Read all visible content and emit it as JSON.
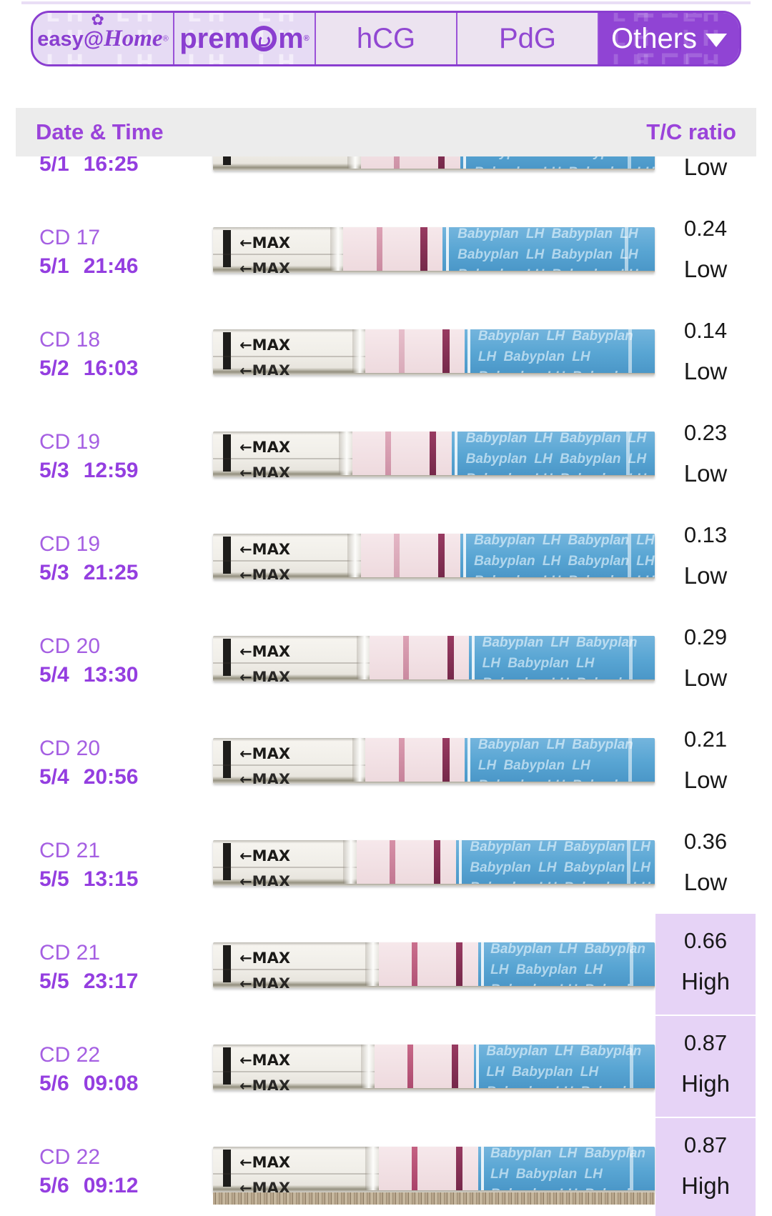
{
  "tab_bar": {
    "watermark": "LH",
    "brand1": {
      "pre": "easy",
      "at": "@",
      "post": "Home",
      "reg": "®",
      "flower": "✿"
    },
    "brand2": {
      "pre": "prem",
      "post": "m",
      "reg": "®"
    },
    "tab_hcg": "hCG",
    "tab_pdg": "PdG",
    "tab_others": "Others"
  },
  "table_header": {
    "col_date": "Date & Time",
    "col_ratio": "T/C ratio"
  },
  "strip": {
    "max_label": "←MAX",
    "brand": "Babyplan LH"
  },
  "colors": {
    "accent_purple": "#8a3ed0",
    "active_tab_bg": "#9044d4",
    "header_bg": "#ececec",
    "high_highlight": "#e6d3f6",
    "date_text": "#943ee0",
    "cd_text": "#a55fe2",
    "sleeve_blue": "#58a5d3",
    "control_line": "#7f2348",
    "test_line": "#b34a6f"
  },
  "rows": [
    {
      "cd": "",
      "date": "5/1",
      "time": "16:25",
      "ratio": "",
      "level": "Low",
      "high": false,
      "partial": true,
      "wood": false,
      "test_opacity": 0.45,
      "shift": -4
    },
    {
      "cd": "CD 17",
      "date": "5/1",
      "time": "21:46",
      "ratio": "0.24",
      "level": "Low",
      "high": false,
      "partial": false,
      "wood": false,
      "test_opacity": 0.5,
      "shift": -8
    },
    {
      "cd": "CD 18",
      "date": "5/2",
      "time": "16:03",
      "ratio": "0.14",
      "level": "Low",
      "high": false,
      "partial": false,
      "wood": false,
      "test_opacity": 0.3,
      "shift": -3
    },
    {
      "cd": "CD 19",
      "date": "5/3",
      "time": "12:59",
      "ratio": "0.23",
      "level": "Low",
      "high": false,
      "partial": false,
      "wood": false,
      "test_opacity": 0.45,
      "shift": -6
    },
    {
      "cd": "CD 19",
      "date": "5/3",
      "time": "21:25",
      "ratio": "0.13",
      "level": "Low",
      "high": false,
      "partial": false,
      "wood": false,
      "test_opacity": 0.35,
      "shift": -4
    },
    {
      "cd": "CD 20",
      "date": "5/4",
      "time": "13:30",
      "ratio": "0.29",
      "level": "Low",
      "high": false,
      "partial": false,
      "wood": false,
      "test_opacity": 0.5,
      "shift": -2
    },
    {
      "cd": "CD 20",
      "date": "5/4",
      "time": "20:56",
      "ratio": "0.21",
      "level": "Low",
      "high": false,
      "partial": false,
      "wood": false,
      "test_opacity": 0.55,
      "shift": -3
    },
    {
      "cd": "CD 21",
      "date": "5/5",
      "time": "13:15",
      "ratio": "0.36",
      "level": "Low",
      "high": false,
      "partial": false,
      "wood": false,
      "test_opacity": 0.62,
      "shift": -5
    },
    {
      "cd": "CD 21",
      "date": "5/5",
      "time": "23:17",
      "ratio": "0.66",
      "level": "High",
      "high": true,
      "partial": false,
      "wood": false,
      "test_opacity": 0.85,
      "shift": 0
    },
    {
      "cd": "CD 22",
      "date": "5/6",
      "time": "09:08",
      "ratio": "0.87",
      "level": "High",
      "high": true,
      "partial": false,
      "wood": false,
      "test_opacity": 0.9,
      "shift": -1
    },
    {
      "cd": "CD 22",
      "date": "5/6",
      "time": "09:12",
      "ratio": "0.87",
      "level": "High",
      "high": true,
      "partial": false,
      "wood": true,
      "test_opacity": 0.95,
      "shift": 0
    }
  ]
}
